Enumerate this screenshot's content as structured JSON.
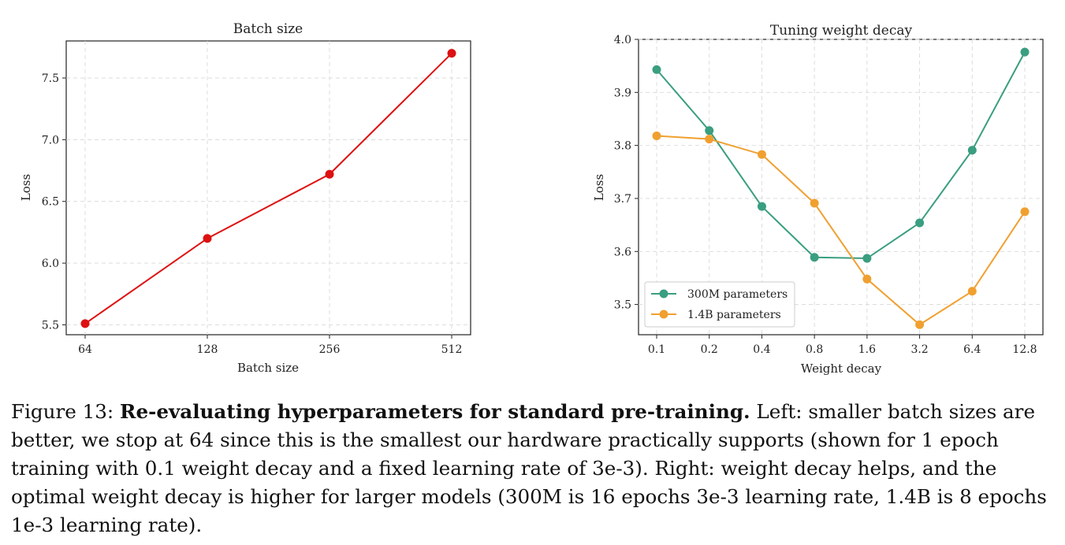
{
  "chart_data": [
    {
      "type": "line",
      "title": "Batch size",
      "xlabel": "Batch size",
      "ylabel": "Loss",
      "categories": [
        "64",
        "128",
        "256",
        "512"
      ],
      "series": [
        {
          "values": [
            5.51,
            6.2,
            6.72,
            7.7
          ],
          "color": "#dd1111"
        }
      ],
      "ylim": [
        5.42,
        7.8
      ],
      "yticks": [
        "5.5",
        "6.0",
        "6.5",
        "7.0",
        "7.5"
      ],
      "yticks_values": [
        5.5,
        6.0,
        6.5,
        7.0,
        7.5
      ],
      "grid": true,
      "legend": "none"
    },
    {
      "type": "line",
      "title": "Tuning weight decay",
      "xlabel": "Weight decay",
      "ylabel": "Loss",
      "categories": [
        "0.1",
        "0.2",
        "0.4",
        "0.8",
        "1.6",
        "3.2",
        "6.4",
        "12.8"
      ],
      "series": [
        {
          "name": "300M parameters",
          "color": "#3a9e80",
          "values": [
            3.943,
            3.828,
            3.685,
            3.589,
            3.587,
            3.654,
            3.791,
            3.976
          ]
        },
        {
          "name": "1.4B parameters",
          "color": "#f0a030",
          "values": [
            3.818,
            3.812,
            3.783,
            3.691,
            3.548,
            3.462,
            3.525,
            3.675
          ]
        }
      ],
      "ylim": [
        3.443,
        4.0
      ],
      "yticks": [
        "3.5",
        "3.6",
        "3.7",
        "3.8",
        "3.9",
        "4.0"
      ],
      "yticks_values": [
        3.5,
        3.6,
        3.7,
        3.8,
        3.9,
        4.0
      ],
      "grid": true,
      "legend": "lower-left"
    }
  ],
  "caption": {
    "label": "Figure 13: ",
    "bold": "Re-evaluating hyperparameters for standard pre-training.",
    "text": " Left: smaller batch sizes are better, we stop at 64 since this is the smallest our hardware practically supports (shown for 1 epoch training with 0.1 weight decay and a fixed learning rate of 3e-3). Right: weight decay helps, and the optimal weight decay is higher for larger models (300M is 16 epochs 3e-3 learning rate, 1.4B is 8 epochs 1e-3 learning rate)."
  }
}
